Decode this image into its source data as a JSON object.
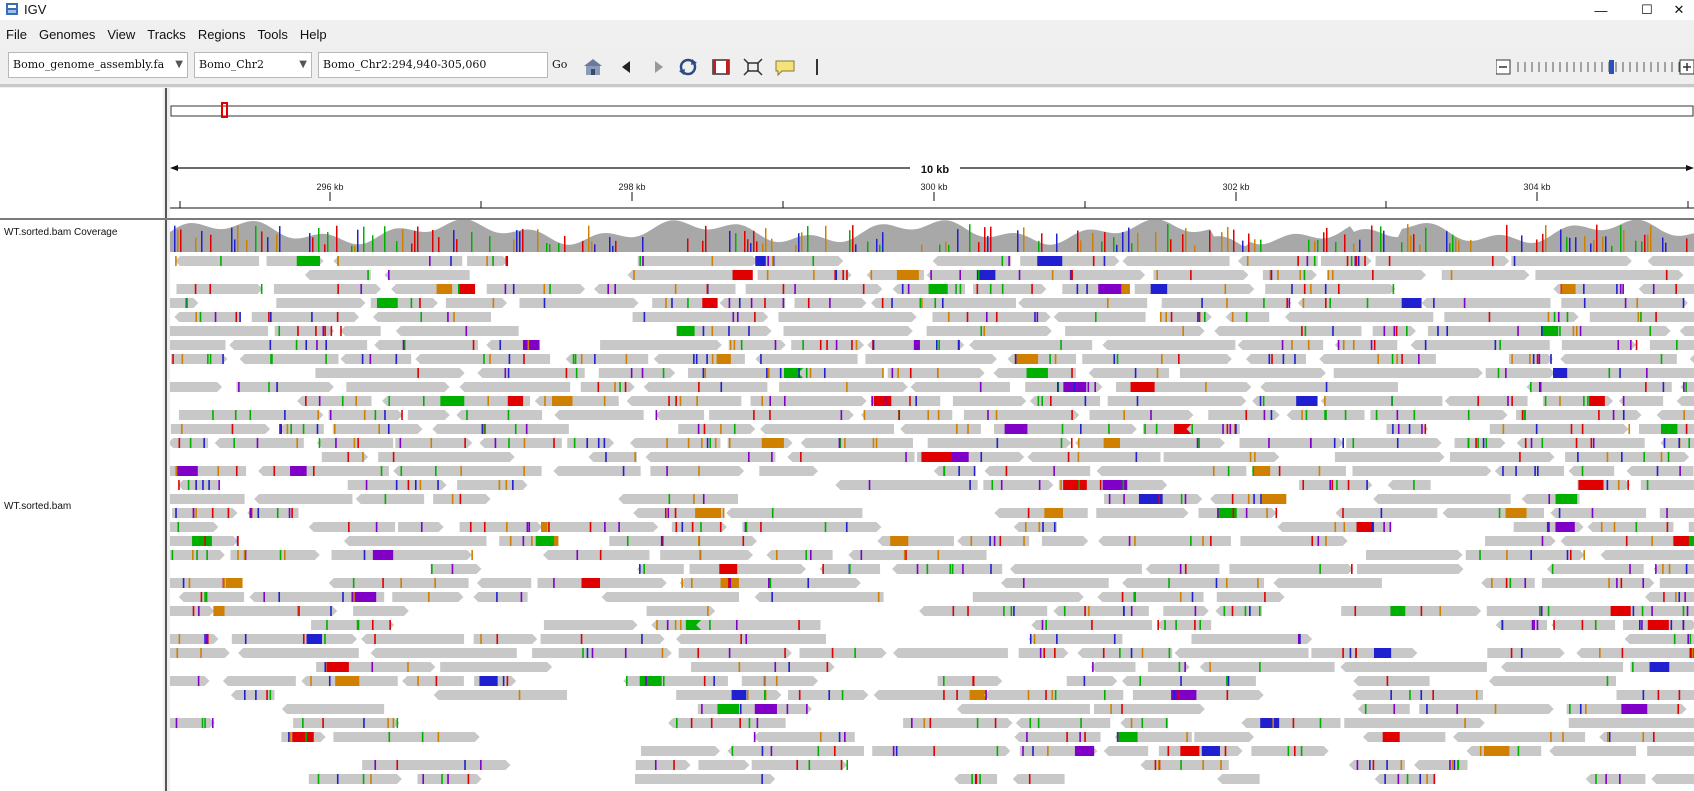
{
  "window": {
    "title": "IGV",
    "minimize_glyph": "—",
    "maximize_glyph": "☐",
    "close_glyph": "✕"
  },
  "menu": [
    "File",
    "Genomes",
    "View",
    "Tracks",
    "Regions",
    "Tools",
    "Help"
  ],
  "toolbar": {
    "genome": "Bomo_genome_assembly.fa",
    "chromosome": "Bomo_Chr2",
    "locus": "Bomo_Chr2:294,940-305,060",
    "go_label": "Go",
    "icons": [
      "home-icon",
      "back-icon",
      "forward-icon",
      "refresh-icon",
      "region-of-interest-icon",
      "resize-to-window-icon",
      "popup-text-icon"
    ]
  },
  "ruler": {
    "span_label": "10 kb",
    "ticks": [
      "296 kb",
      "298 kb",
      "300 kb",
      "302 kb",
      "304 kb"
    ]
  },
  "tracks": {
    "coverage_name": "WT.sorted.bam Coverage",
    "alignment_name": "WT.sorted.bam"
  },
  "colors": {
    "read": "#c8c8c8",
    "coverage": "#a8a8a8",
    "mismatch_A": "#00b000",
    "mismatch_C": "#2020d0",
    "mismatch_G": "#d08000",
    "mismatch_T": "#e00000",
    "insertion": "#8000c8",
    "ideogram_marker": "#e00000"
  }
}
